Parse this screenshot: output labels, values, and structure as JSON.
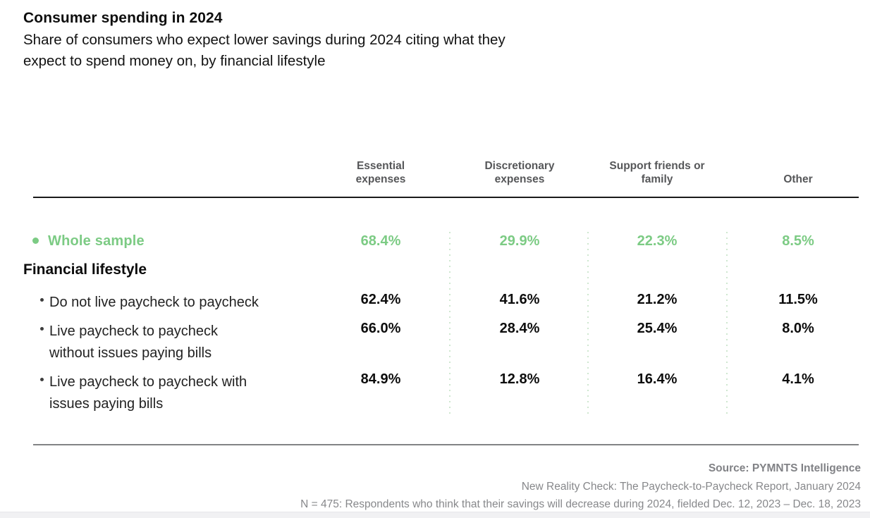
{
  "header": {
    "title": "Consumer spending in 2024",
    "subtitle": "Share of consumers who expect lower savings during 2024 citing what they\nexpect to spend money on, by financial lifestyle"
  },
  "table": {
    "columns": [
      "Essential\nexpenses",
      "Discretionary\nexpenses",
      "Support friends or\nfamily",
      "Other"
    ],
    "whole_sample": {
      "label": "Whole sample",
      "values": [
        "68.4%",
        "29.9%",
        "22.3%",
        "8.5%"
      ]
    },
    "section_label": "Financial lifestyle",
    "rows": [
      {
        "label": "Do not live paycheck to paycheck",
        "values": [
          "62.4%",
          "41.6%",
          "21.2%",
          "11.5%"
        ]
      },
      {
        "label": "Live paycheck to paycheck\nwithout issues paying bills",
        "values": [
          "66.0%",
          "28.4%",
          "25.4%",
          "8.0%"
        ]
      },
      {
        "label": "Live paycheck to paycheck with\nissues paying bills",
        "values": [
          "84.9%",
          "12.8%",
          "16.4%",
          "4.1%"
        ]
      }
    ]
  },
  "footer": {
    "source": "Source: PYMNTS Intelligence",
    "report": "New Reality Check: The Paycheck-to-Paycheck Report, January 2024",
    "note": "N = 475: Respondents who think that their savings will decrease during 2024, fielded Dec. 12, 2023 – Dec. 18, 2023"
  },
  "colors": {
    "accent_green": "#7ccb84",
    "dotted_separator": "#cfe7d0",
    "header_gray": "#565759",
    "footer_gray": "#87888b",
    "text_black": "#0d0d0d"
  },
  "chart_data": {
    "type": "table",
    "title": "Consumer spending in 2024",
    "subtitle": "Share of consumers who expect lower savings during 2024 citing what they expect to spend money on, by financial lifestyle",
    "columns": [
      "Essential expenses",
      "Discretionary expenses",
      "Support friends or family",
      "Other"
    ],
    "rows": [
      {
        "group": null,
        "label": "Whole sample",
        "values_pct": [
          68.4,
          29.9,
          22.3,
          8.5
        ],
        "highlighted": true
      },
      {
        "group": "Financial lifestyle",
        "label": "Do not live paycheck to paycheck",
        "values_pct": [
          62.4,
          41.6,
          21.2,
          11.5
        ]
      },
      {
        "group": "Financial lifestyle",
        "label": "Live paycheck to paycheck without issues paying bills",
        "values_pct": [
          66.0,
          28.4,
          25.4,
          8.0
        ]
      },
      {
        "group": "Financial lifestyle",
        "label": "Live paycheck to paycheck with issues paying bills",
        "values_pct": [
          84.9,
          12.8,
          16.4,
          4.1
        ]
      }
    ],
    "units": "percent",
    "source": "PYMNTS Intelligence"
  }
}
